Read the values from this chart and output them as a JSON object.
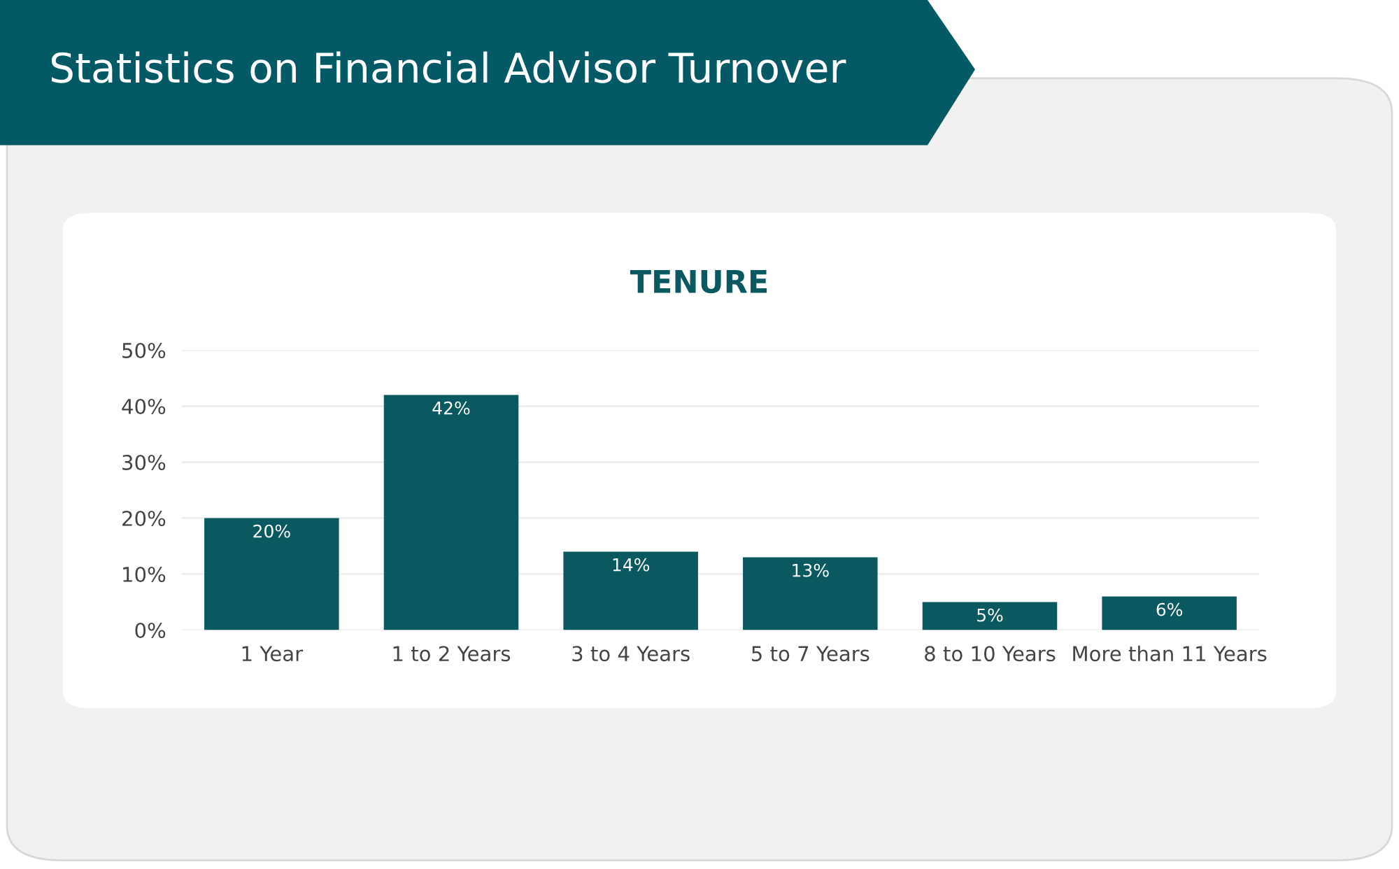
{
  "chart_data": {
    "type": "bar",
    "title": "Statistics on Financial Advisor Turnover",
    "subtitle": "TENURE",
    "categories": [
      "1 Year",
      "1 to 2 Years",
      "3 to 4 Years",
      "5 to 7 Years",
      "8 to 10 Years",
      "More than 11 Years"
    ],
    "values": [
      20,
      42,
      14,
      13,
      5,
      6
    ],
    "value_labels": [
      "20%",
      "42%",
      "14%",
      "13%",
      "5%",
      "6%"
    ],
    "color": "#0b5960",
    "ylim": [
      0,
      50
    ],
    "yticks": [
      {
        "value": 0,
        "label": "0%"
      },
      {
        "value": 10,
        "label": "10%"
      },
      {
        "value": 20,
        "label": "20%"
      },
      {
        "value": 30,
        "label": "30%"
      },
      {
        "value": 40,
        "label": "40%"
      },
      {
        "value": 50,
        "label": "50%"
      }
    ],
    "grid": "y"
  }
}
